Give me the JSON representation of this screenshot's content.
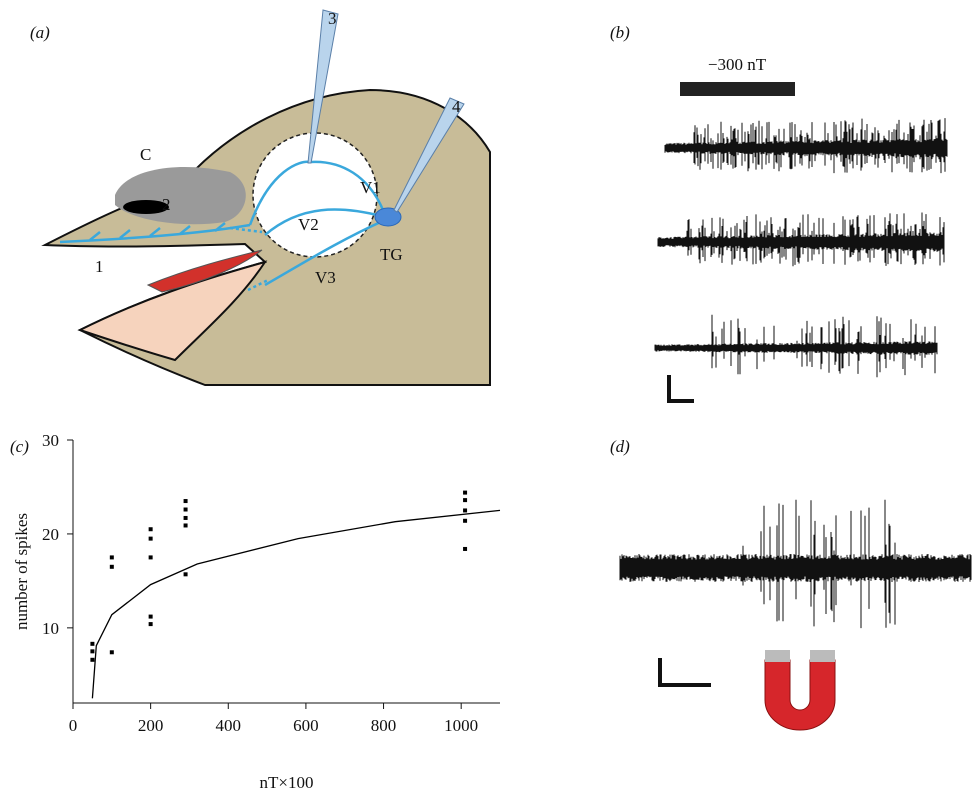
{
  "panels": {
    "a": {
      "label": "(a)",
      "parts": {
        "c": "C",
        "n1": "1",
        "n2": "2",
        "n3": "3",
        "n4": "4",
        "v1": "V1",
        "v2": "V2",
        "v3": "V3",
        "tg": "TG"
      }
    },
    "b": {
      "label": "(b)",
      "stimulus": "−300 nT"
    },
    "c": {
      "label": "(c)"
    },
    "d": {
      "label": "(d)"
    }
  },
  "chart_data": {
    "type": "scatter",
    "xlabel": "nT×100",
    "ylabel": "number of spikes",
    "xlim": [
      0,
      1100
    ],
    "ylim": [
      2,
      30
    ],
    "xticks": [
      0,
      200,
      400,
      600,
      800,
      1000
    ],
    "yticks": [
      10,
      20,
      30
    ],
    "series": [
      {
        "type": "scatter",
        "color": "#000000",
        "x": [
          50,
          50,
          50,
          100,
          100,
          100,
          200,
          200,
          200,
          200,
          200,
          290,
          290,
          290,
          290,
          290,
          1010,
          1010,
          1010,
          1010,
          1010
        ],
        "values": [
          6.6,
          7.5,
          8.3,
          7.4,
          16.5,
          17.5,
          10.4,
          11.2,
          17.5,
          19.5,
          20.5,
          15.7,
          20.9,
          21.7,
          22.6,
          23.5,
          18.4,
          21.4,
          22.5,
          23.6,
          24.4
        ]
      },
      {
        "type": "line",
        "color": "#000000",
        "x": [
          50,
          60,
          100,
          200,
          320,
          580,
          830,
          1100
        ],
        "values": [
          2.5,
          8.1,
          11.4,
          14.6,
          16.8,
          19.5,
          21.3,
          22.5
        ]
      }
    ]
  }
}
